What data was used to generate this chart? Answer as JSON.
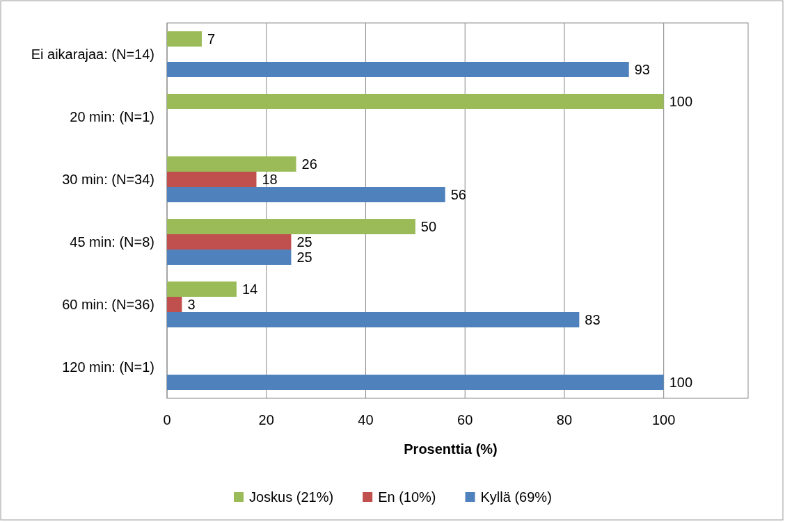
{
  "chart_data": {
    "type": "bar",
    "orientation": "horizontal",
    "xlabel": "Prosenttia (%)",
    "categories": [
      "Ei aikarajaa: (N=14)",
      "20 min: (N=1)",
      "30 min: (N=34)",
      "45 min: (N=8)",
      "60 min: (N=36)",
      "120 min: (N=1)"
    ],
    "series": [
      {
        "name": "Joskus (21%)",
        "color": "#9bbb59",
        "values": [
          7,
          100,
          26,
          50,
          14,
          null
        ]
      },
      {
        "name": "En (10%)",
        "color": "#c0504d",
        "values": [
          null,
          null,
          18,
          25,
          3,
          null
        ]
      },
      {
        "name": "Kyllä (69%)",
        "color": "#4f81bd",
        "values": [
          93,
          null,
          56,
          25,
          83,
          100
        ]
      }
    ],
    "xlim": [
      0,
      117
    ],
    "xticks": [
      0,
      20,
      40,
      60,
      80,
      100
    ],
    "grid": "x",
    "data_labels": true,
    "legend": "bottom"
  }
}
